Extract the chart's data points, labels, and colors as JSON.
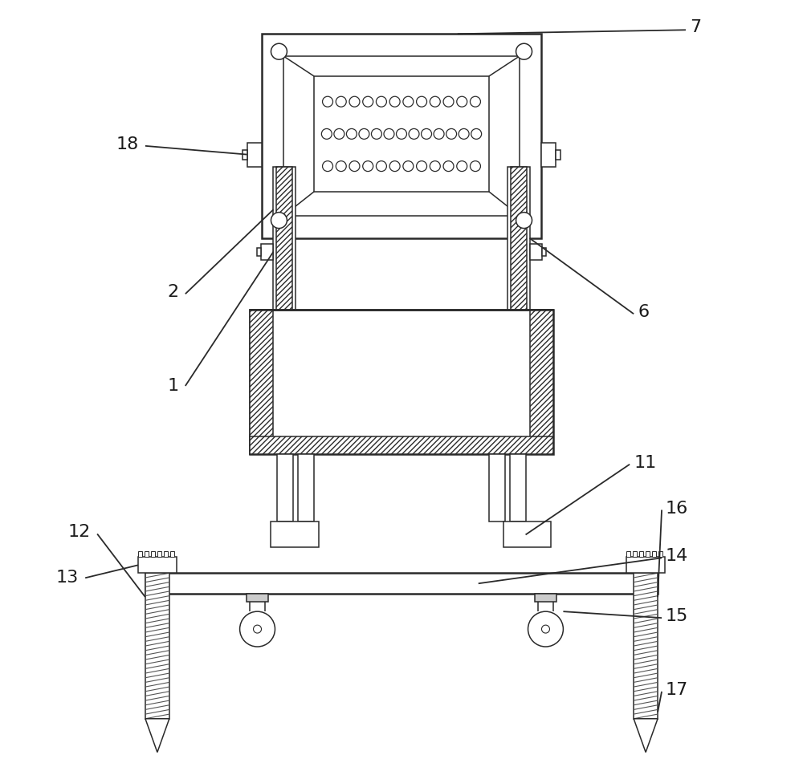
{
  "bg_color": "#ffffff",
  "line_color": "#2a2a2a",
  "lw": 1.8,
  "lw_thin": 1.1,
  "label_fs": 16,
  "label_color": "#1a1a1a"
}
